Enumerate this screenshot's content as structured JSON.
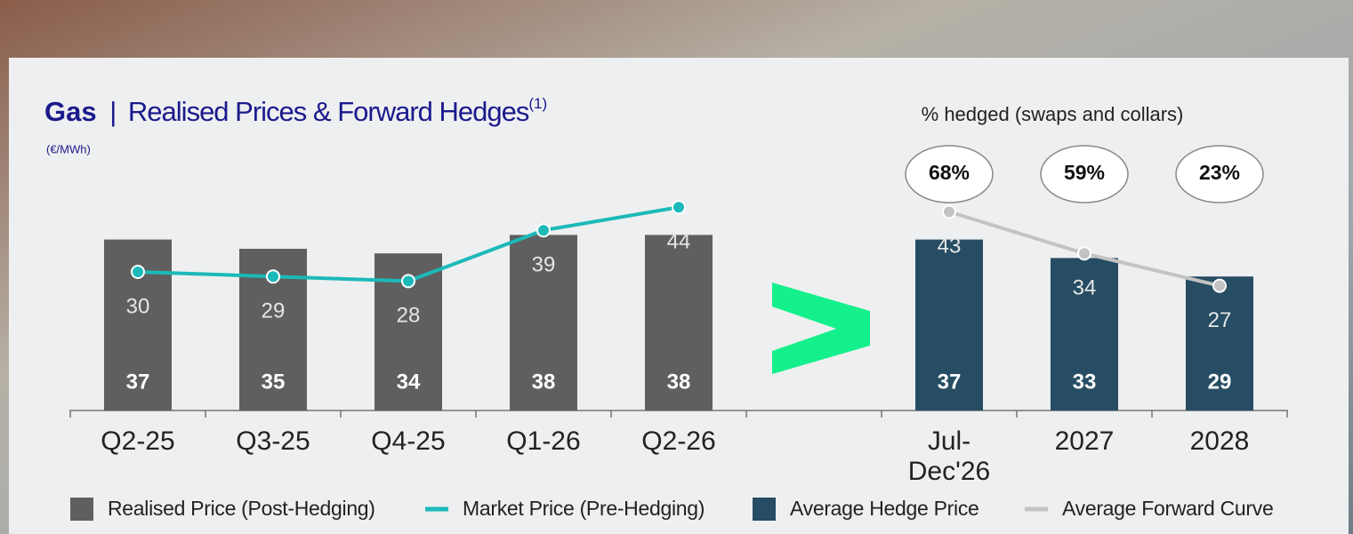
{
  "chart_data": {
    "type": "bar",
    "title": "Gas",
    "separator": "|",
    "subtitle": "Realised Prices & Forward Hedges",
    "footnote_ref": "(1)",
    "unit": "(€/MWh)",
    "categories": [
      "Q2-25",
      "Q3-25",
      "Q4-25",
      "Q1-26",
      "Q2-26",
      null,
      "Jul-Dec'26",
      "2027",
      "2028"
    ],
    "series": [
      {
        "name": "Realised Price (Post-Hedging)",
        "type": "bar",
        "color": "#5f5f5f",
        "values": [
          37,
          35,
          34,
          38,
          38,
          null,
          null,
          null,
          null
        ]
      },
      {
        "name": "Market Price (Pre-Hedging)",
        "type": "line",
        "color": "#1cb9b9",
        "values": [
          30,
          29,
          28,
          39,
          44,
          null,
          null,
          null,
          null
        ]
      },
      {
        "name": "Average Hedge Price",
        "type": "bar",
        "color": "#264d63",
        "values": [
          null,
          null,
          null,
          null,
          null,
          null,
          37,
          33,
          29
        ]
      },
      {
        "name": "Average Forward Curve",
        "type": "line",
        "color": "#c3c3c3",
        "values": [
          null,
          null,
          null,
          null,
          null,
          null,
          43,
          34,
          27
        ]
      }
    ],
    "hedged": {
      "title": "% hedged (swaps and collars)",
      "values": [
        68,
        59,
        23
      ],
      "value_labels": [
        "68%",
        "59%",
        "23%"
      ]
    }
  }
}
